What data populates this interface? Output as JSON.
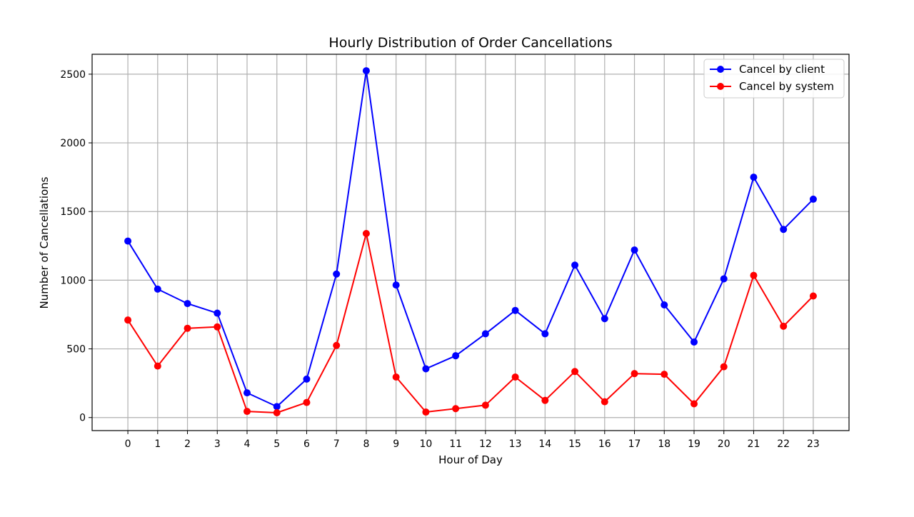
{
  "chart_data": {
    "type": "line",
    "title": "Hourly Distribution of Order Cancellations",
    "xlabel": "Hour of Day",
    "ylabel": "Number of Cancellations",
    "x": [
      0,
      1,
      2,
      3,
      4,
      5,
      6,
      7,
      8,
      9,
      10,
      11,
      12,
      13,
      14,
      15,
      16,
      17,
      18,
      19,
      20,
      21,
      22,
      23
    ],
    "xlim": [
      -1.2,
      24.2
    ],
    "ylim": [
      -95,
      2645
    ],
    "yticks": [
      0,
      500,
      1000,
      1500,
      2000,
      2500
    ],
    "grid": true,
    "legend_position": "top-right",
    "series": [
      {
        "name": "Cancel by client",
        "color": "#0000ff",
        "values": [
          1285,
          935,
          830,
          760,
          180,
          80,
          280,
          1045,
          2525,
          965,
          355,
          450,
          610,
          780,
          610,
          1110,
          720,
          1220,
          820,
          550,
          1010,
          1750,
          1370,
          1590
        ]
      },
      {
        "name": "Cancel by system",
        "color": "#ff0000",
        "values": [
          710,
          375,
          650,
          660,
          45,
          35,
          110,
          525,
          1340,
          295,
          40,
          65,
          90,
          295,
          125,
          335,
          115,
          320,
          315,
          100,
          370,
          1035,
          665,
          885
        ]
      }
    ]
  }
}
